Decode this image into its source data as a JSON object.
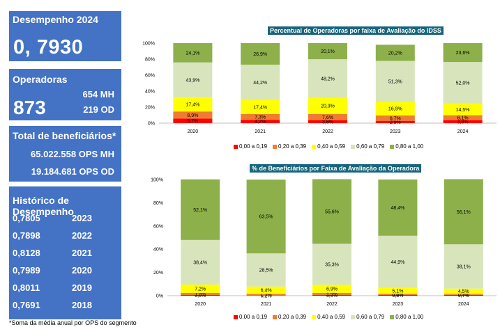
{
  "desempenho": {
    "title": "Desempenho 2024",
    "value": "0, 7930"
  },
  "operadoras": {
    "title": "Operadoras",
    "total": "873",
    "mh": "654 MH",
    "od": "219 OD"
  },
  "beneficiarios": {
    "title": "Total de beneficiários*",
    "mh": "65.022.558 OPS MH",
    "od": "19.184.681 OPS OD"
  },
  "historico": {
    "title": "Histórico de Desempenho",
    "rows": [
      {
        "value": "0,7805",
        "year": "2023"
      },
      {
        "value": "0,7898",
        "year": "2022"
      },
      {
        "value": "0,8128",
        "year": "2021"
      },
      {
        "value": "0,7989",
        "year": "2020"
      },
      {
        "value": "0,8011",
        "year": "2019"
      },
      {
        "value": "0,7691",
        "year": "2018"
      }
    ]
  },
  "footnote": "*Soma da média anual por OPS do segmento",
  "colors": {
    "panel": "#4472c4",
    "title_bg": "#17657c"
  },
  "chart_data": [
    {
      "type": "bar",
      "stacked": true,
      "title": "Percentual de Operadoras por faixa de Avaliação do IDSS",
      "categories": [
        "2020",
        "2021",
        "2022",
        "2023",
        "2024"
      ],
      "ylim": [
        0,
        100
      ],
      "yticks": [
        "0%",
        "20%",
        "40%",
        "60%",
        "80%",
        "100%"
      ],
      "legend_position": "bottom",
      "series": [
        {
          "name": "0,00 a 0,19",
          "color": "#ff0000",
          "values": [
            5.7,
            4.2,
            3.8,
            2.9,
            3.8
          ],
          "labels": [
            "5,7%",
            "4,2%",
            "3,8%",
            "2,9%",
            "3,8%"
          ]
        },
        {
          "name": "0,20 a 0,39",
          "color": "#ed7d31",
          "values": [
            8.9,
            7.3,
            7.6,
            6.7,
            6.1
          ],
          "labels": [
            "8,9%",
            "7,3%",
            "7,6%",
            "6,7%",
            "6,1%"
          ]
        },
        {
          "name": "0,40 a 0,59",
          "color": "#ffff00",
          "values": [
            17.4,
            17.4,
            20.3,
            16.9,
            14.5
          ],
          "labels": [
            "17,4%",
            "17,4%",
            "20,3%",
            "16,9%",
            "14,5%"
          ]
        },
        {
          "name": "0,60 a 0,79",
          "color": "#d8e4bc",
          "values": [
            43.9,
            44.2,
            48.2,
            51.3,
            52.0
          ],
          "labels": [
            "43,9%",
            "44,2%",
            "48,2%",
            "51,3%",
            "52,0%"
          ]
        },
        {
          "name": "0,80 a 1,00",
          "color": "#8db04a",
          "values": [
            24.1,
            26.9,
            20.1,
            20.2,
            23.6
          ],
          "labels": [
            "24,1%",
            "26,9%",
            "20,1%",
            "20,2%",
            "23,6%"
          ]
        }
      ]
    },
    {
      "type": "bar",
      "stacked": true,
      "title": "% de Beneficiários por Faixa de Avaliação da Operadora",
      "categories": [
        "2020",
        "2021",
        "2022",
        "2023",
        "2024"
      ],
      "ylim": [
        0,
        100
      ],
      "yticks": [
        "0%",
        "20%",
        "40%",
        "60%",
        "80%",
        "100%"
      ],
      "legend_position": "bottom",
      "series": [
        {
          "name": "0,00 a 0,19",
          "color": "#ff0000",
          "values": [
            0.6,
            0.2,
            0.6,
            0.8,
            0.7
          ],
          "labels": [
            "0,6%",
            "0,2%",
            "0,6%",
            "0,8%",
            "0,7%"
          ]
        },
        {
          "name": "0,20 a 0,39",
          "color": "#ed7d31",
          "values": [
            1.8,
            1.3,
            1.9,
            0.8,
            0.9
          ],
          "labels": [
            "1,8%",
            "1,3%",
            "1,9%",
            "0,8%",
            "0,9%"
          ]
        },
        {
          "name": "0,40 a 0,59",
          "color": "#ffff00",
          "values": [
            7.2,
            6.4,
            6.9,
            5.1,
            4.5
          ],
          "labels": [
            "7,2%",
            "6,4%",
            "6,9%",
            "5,1%",
            "4,5%"
          ]
        },
        {
          "name": "0,60 a 0,79",
          "color": "#d8e4bc",
          "values": [
            38.4,
            28.5,
            35.3,
            44.9,
            38.1
          ],
          "labels": [
            "38,4%",
            "28,5%",
            "35,3%",
            "44,9%",
            "38,1%"
          ]
        },
        {
          "name": "0,80 a 1,00",
          "color": "#8db04a",
          "values": [
            52.1,
            63.5,
            55.6,
            48.4,
            56.1
          ],
          "labels": [
            "52,1%",
            "63,5%",
            "55,6%",
            "48,4%",
            "56,1%"
          ]
        }
      ]
    }
  ]
}
